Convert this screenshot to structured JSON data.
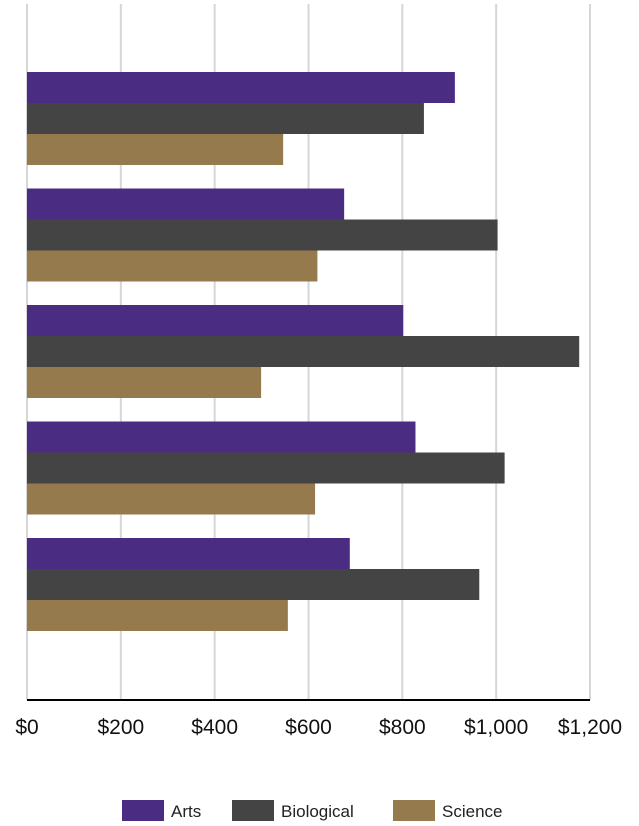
{
  "chart_data": {
    "type": "bar",
    "orientation": "horizontal",
    "title": "",
    "xlabel": "",
    "ylabel": "",
    "xlim": [
      0,
      1200
    ],
    "x_ticks": [
      0,
      200,
      400,
      600,
      800,
      1000,
      1200
    ],
    "x_tick_labels": [
      "$0",
      "$200",
      "$400",
      "$600",
      "$800",
      "$1,000",
      "$1,200"
    ],
    "grid": "vertical",
    "legend_position": "bottom-center",
    "categories": [
      "",
      "",
      "",
      "",
      ""
    ],
    "series": [
      {
        "name": "Arts",
        "color": "#4b2c83",
        "values": [
          912,
          676,
          802,
          828,
          688
        ]
      },
      {
        "name": "Biological",
        "color": "#444444",
        "values": [
          846,
          1003,
          1177,
          1018,
          964
        ]
      },
      {
        "name": "Science",
        "color": "#957a4d",
        "values": [
          546,
          619,
          499,
          614,
          556
        ]
      }
    ]
  }
}
